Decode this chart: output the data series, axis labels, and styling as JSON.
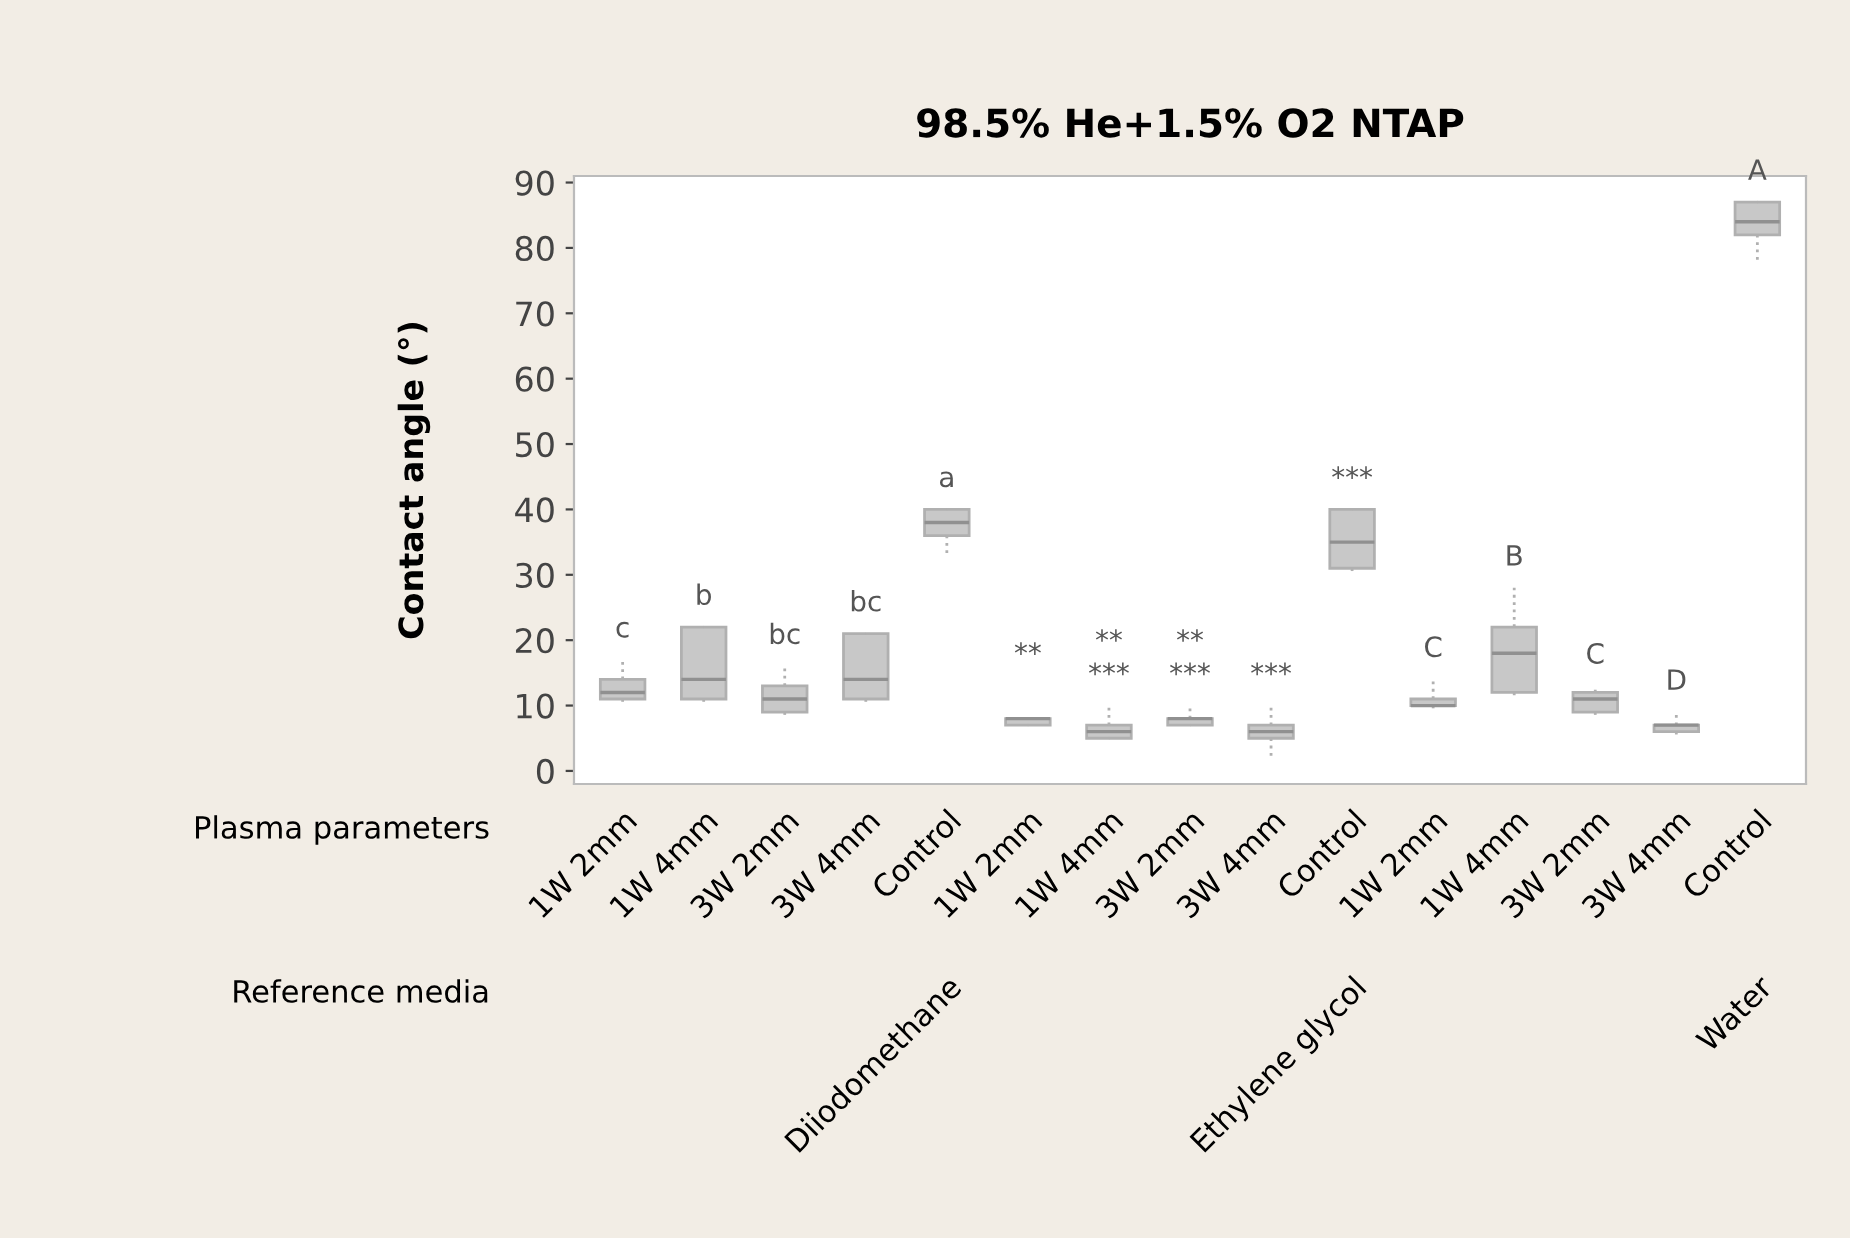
{
  "chart_data": {
    "type": "box",
    "title": "98.5% He+1.5% O2 NTAP",
    "ylabel": "Contact angle (°)",
    "categories": [
      "1W 2mm",
      "1W 4mm",
      "3W 2mm",
      "3W 4mm",
      "Control",
      "1W 2mm",
      "1W 4mm",
      "3W 2mm",
      "3W 4mm",
      "Control",
      "1W 2mm",
      "1W 4mm",
      "3W 2mm",
      "3W 4mm",
      "Control"
    ],
    "boxes": [
      {
        "low": 10,
        "q1": 11,
        "median": 12,
        "q3": 14,
        "high": 17
      },
      {
        "low": 10,
        "q1": 11,
        "median": 14,
        "q3": 22,
        "high": 22
      },
      {
        "low": 8,
        "q1": 9,
        "median": 11,
        "q3": 13,
        "high": 16
      },
      {
        "low": 10,
        "q1": 11,
        "median": 14,
        "q3": 21,
        "high": 21
      },
      {
        "low": 33,
        "q1": 36,
        "median": 38,
        "q3": 40,
        "high": 40
      },
      {
        "low": 7,
        "q1": 7,
        "median": 8,
        "q3": 8,
        "high": 8
      },
      {
        "low": 5,
        "q1": 5,
        "median": 6,
        "q3": 7,
        "high": 10
      },
      {
        "low": 7,
        "q1": 7,
        "median": 8,
        "q3": 8,
        "high": 10
      },
      {
        "low": 2,
        "q1": 5,
        "median": 6,
        "q3": 7,
        "high": 10
      },
      {
        "low": 30,
        "q1": 31,
        "median": 35,
        "q3": 40,
        "high": 40
      },
      {
        "low": 9,
        "q1": 10,
        "median": 10,
        "q3": 11,
        "high": 14
      },
      {
        "low": 11,
        "q1": 12,
        "median": 18,
        "q3": 22,
        "high": 28
      },
      {
        "low": 8,
        "q1": 9,
        "median": 11,
        "q3": 12,
        "high": 13
      },
      {
        "low": 5,
        "q1": 6,
        "median": 7,
        "q3": 7,
        "high": 9
      },
      {
        "low": 78,
        "q1": 82,
        "median": 84,
        "q3": 87,
        "high": 87
      }
    ],
    "color": "#c8c8c8",
    "ylim": [
      -2,
      91
    ],
    "yticks": [
      0,
      10,
      20,
      30,
      40,
      50,
      60,
      70,
      80,
      90
    ],
    "annotations": [
      "Plasma parameters",
      "Reference media",
      "c",
      "b",
      "bc",
      "bc",
      "a",
      "Diiodomethane",
      "**",
      "**",
      "***",
      "**",
      "***",
      "***",
      "***",
      "Ethylene glycol",
      "C",
      "B",
      "C",
      "D",
      "A",
      "Water"
    ]
  }
}
